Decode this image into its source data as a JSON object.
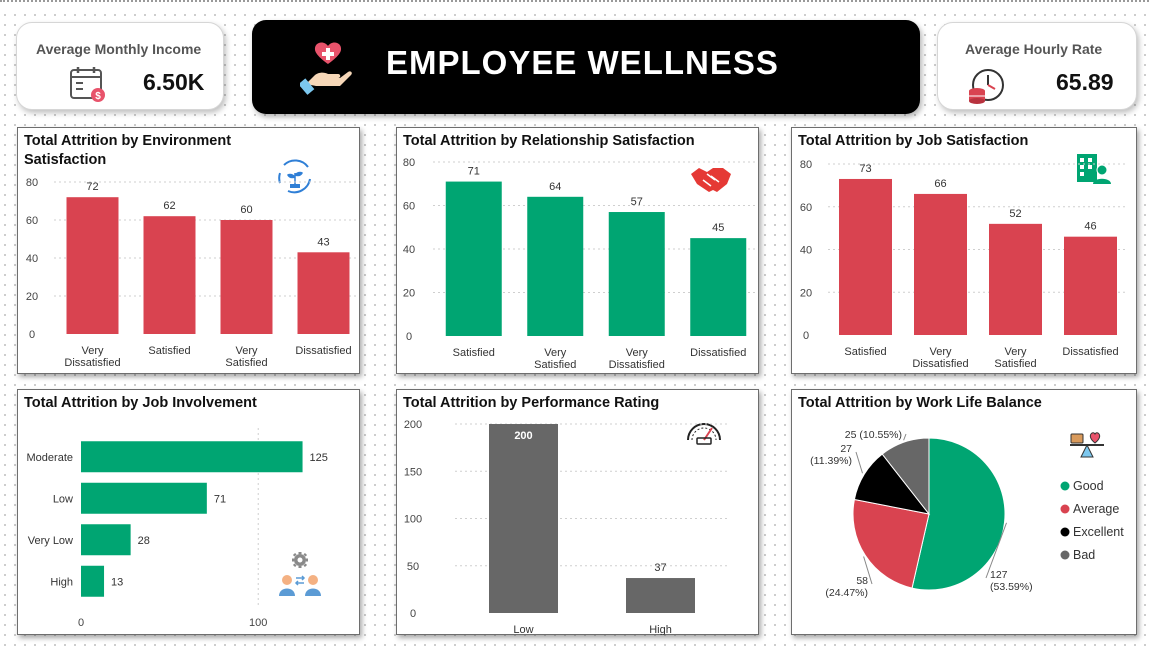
{
  "header": {
    "title": "EMPLOYEE WELLNESS"
  },
  "kpis": {
    "income": {
      "label": "Average Monthly Income",
      "value": "6.50K",
      "icon": "calendar-dollar-icon"
    },
    "hourly": {
      "label": "Average Hourly Rate",
      "value": "65.89",
      "icon": "clock-coins-icon"
    }
  },
  "colors": {
    "red": "#d94350",
    "green": "#00a572",
    "gray": "#676767",
    "black": "#000000"
  },
  "chart_data": [
    {
      "id": "env",
      "type": "bar",
      "title": "Total Attrition by Environment Satisfaction",
      "categories": [
        "Very Dissatisfied",
        "Satisfied",
        "Very Satisfied",
        "Dissatisfied"
      ],
      "values": [
        72,
        62,
        60,
        43
      ],
      "yticks": [
        0,
        20,
        40,
        60,
        80
      ],
      "ylim": [
        0,
        80
      ],
      "color": "#d94350",
      "grid": true
    },
    {
      "id": "rel",
      "type": "bar",
      "title": "Total Attrition by Relationship Satisfaction",
      "categories": [
        "Satisfied",
        "Very Satisfied",
        "Very Dissatisfied",
        "Dissatisfied"
      ],
      "values": [
        71,
        64,
        57,
        45
      ],
      "yticks": [
        0,
        20,
        40,
        60,
        80
      ],
      "ylim": [
        0,
        80
      ],
      "color": "#00a572",
      "grid": true
    },
    {
      "id": "job",
      "type": "bar",
      "title": "Total Attrition by Job Satisfaction",
      "categories": [
        "Satisfied",
        "Very Dissatisfied",
        "Very Satisfied",
        "Dissatisfied"
      ],
      "values": [
        73,
        66,
        52,
        46
      ],
      "yticks": [
        0,
        20,
        40,
        60,
        80
      ],
      "ylim": [
        0,
        80
      ],
      "color": "#d94350",
      "grid": true
    },
    {
      "id": "inv",
      "type": "bar",
      "orientation": "horizontal",
      "title": "Total Attrition by Job Involvement",
      "categories": [
        "Moderate",
        "Low",
        "Very Low",
        "High"
      ],
      "values": [
        125,
        71,
        28,
        13
      ],
      "xticks": [
        0,
        100
      ],
      "xlim": [
        0,
        145
      ],
      "color": "#00a572",
      "grid": true
    },
    {
      "id": "perf",
      "type": "bar",
      "title": "Total Attrition by Performance Rating",
      "categories": [
        "Low",
        "High"
      ],
      "values": [
        200,
        37
      ],
      "yticks": [
        0,
        50,
        100,
        150,
        200
      ],
      "ylim": [
        0,
        200
      ],
      "color": "#676767",
      "grid": true
    },
    {
      "id": "wlb",
      "type": "pie",
      "title": "Total Attrition by Work Life Balance",
      "labels": [
        "Good",
        "Average",
        "Excellent",
        "Bad"
      ],
      "values": [
        127,
        58,
        27,
        25
      ],
      "data_labels": [
        [
          "127",
          "(53.59%)"
        ],
        [
          "58",
          "(24.47%)"
        ],
        [
          "27",
          "(11.39%)"
        ],
        [
          "25 (10.55%)"
        ]
      ],
      "colors": [
        "#00a572",
        "#d94350",
        "#000000",
        "#676767"
      ],
      "legend": "right"
    }
  ]
}
